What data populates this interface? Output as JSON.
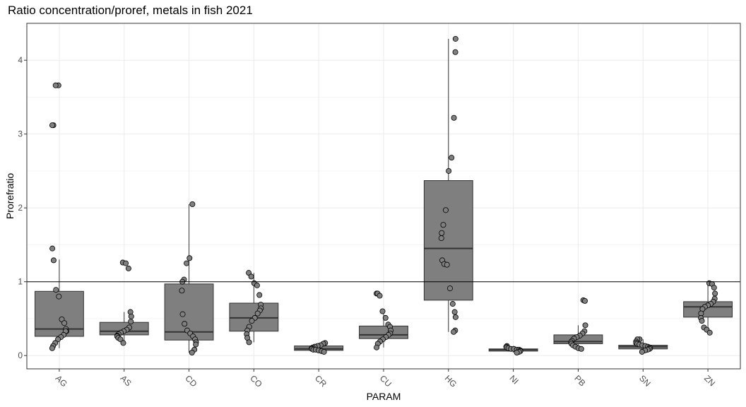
{
  "chart_data": {
    "type": "box",
    "title": "Ratio concentration/proref, metals in fish 2021",
    "xlabel": "PARAM",
    "ylabel": "Prorefratio",
    "ylim": [
      -0.18,
      4.5
    ],
    "yticks": [
      0,
      1,
      2,
      3,
      4
    ],
    "reference_line": 1,
    "grid": true,
    "box_color": "#7f7f7f",
    "point_color": "#808080",
    "categories": [
      "AG",
      "AS",
      "CD",
      "CO",
      "CR",
      "CU",
      "HG",
      "NI",
      "PB",
      "SN",
      "ZN"
    ],
    "boxes": [
      {
        "q1": 0.26,
        "median": 0.36,
        "q3": 0.87,
        "whisker_low": 0.1,
        "whisker_high": 1.3
      },
      {
        "q1": 0.28,
        "median": 0.33,
        "q3": 0.45,
        "whisker_low": 0.17,
        "whisker_high": 0.59
      },
      {
        "q1": 0.21,
        "median": 0.32,
        "q3": 0.97,
        "whisker_low": 0.04,
        "whisker_high": 2.05
      },
      {
        "q1": 0.33,
        "median": 0.51,
        "q3": 0.71,
        "whisker_low": 0.18,
        "whisker_high": 1.12
      },
      {
        "q1": 0.07,
        "median": 0.09,
        "q3": 0.13,
        "whisker_low": 0.05,
        "whisker_high": 0.17
      },
      {
        "q1": 0.23,
        "median": 0.28,
        "q3": 0.4,
        "whisker_low": 0.11,
        "whisker_high": 0.6
      },
      {
        "q1": 0.75,
        "median": 1.45,
        "q3": 2.37,
        "whisker_low": 0.32,
        "whisker_high": 4.29
      },
      {
        "q1": 0.06,
        "median": 0.08,
        "q3": 0.09,
        "whisker_low": 0.04,
        "whisker_high": 0.13
      },
      {
        "q1": 0.16,
        "median": 0.19,
        "q3": 0.28,
        "whisker_low": 0.09,
        "whisker_high": 0.41
      },
      {
        "q1": 0.09,
        "median": 0.12,
        "q3": 0.14,
        "whisker_low": 0.05,
        "whisker_high": 0.22
      },
      {
        "q1": 0.52,
        "median": 0.66,
        "q3": 0.73,
        "whisker_low": 0.31,
        "whisker_high": 0.98
      }
    ],
    "points": [
      [
        3.66,
        3.66,
        3.12,
        3.12,
        1.45,
        1.29,
        0.89,
        0.8,
        0.49,
        0.44,
        0.36,
        0.33,
        0.33,
        0.28,
        0.25,
        0.22,
        0.17,
        0.13,
        0.1
      ],
      [
        1.26,
        1.25,
        1.18,
        0.59,
        0.53,
        0.46,
        0.38,
        0.35,
        0.33,
        0.31,
        0.29,
        0.27,
        0.26,
        0.24,
        0.22,
        0.17
      ],
      [
        2.05,
        1.32,
        1.25,
        1.03,
        1.0,
        0.88,
        0.56,
        0.43,
        0.34,
        0.3,
        0.26,
        0.22,
        0.18,
        0.15,
        0.08,
        0.04
      ],
      [
        1.12,
        1.07,
        0.98,
        0.95,
        0.82,
        0.69,
        0.64,
        0.61,
        0.57,
        0.51,
        0.47,
        0.39,
        0.34,
        0.29,
        0.24,
        0.18
      ],
      [
        0.17,
        0.16,
        0.14,
        0.13,
        0.12,
        0.11,
        0.1,
        0.09,
        0.08,
        0.08,
        0.07,
        0.06,
        0.05
      ],
      [
        0.84,
        0.84,
        0.81,
        0.6,
        0.51,
        0.42,
        0.39,
        0.34,
        0.3,
        0.28,
        0.25,
        0.22,
        0.19,
        0.16,
        0.11
      ],
      [
        4.29,
        4.11,
        3.22,
        2.68,
        2.5,
        1.97,
        1.77,
        1.66,
        1.59,
        1.29,
        1.24,
        1.23,
        0.91,
        0.7,
        0.59,
        0.52,
        0.34,
        0.32
      ],
      [
        0.13,
        0.12,
        0.11,
        0.1,
        0.09,
        0.09,
        0.08,
        0.08,
        0.07,
        0.06,
        0.05,
        0.04
      ],
      [
        0.75,
        0.74,
        0.41,
        0.33,
        0.3,
        0.27,
        0.25,
        0.23,
        0.2,
        0.18,
        0.16,
        0.14,
        0.12,
        0.1,
        0.09
      ],
      [
        0.22,
        0.22,
        0.19,
        0.17,
        0.16,
        0.15,
        0.14,
        0.13,
        0.12,
        0.11,
        0.1,
        0.09,
        0.08,
        0.07,
        0.05
      ],
      [
        0.98,
        0.97,
        0.92,
        0.84,
        0.77,
        0.73,
        0.7,
        0.68,
        0.66,
        0.63,
        0.57,
        0.51,
        0.47,
        0.38,
        0.35,
        0.31
      ]
    ]
  }
}
